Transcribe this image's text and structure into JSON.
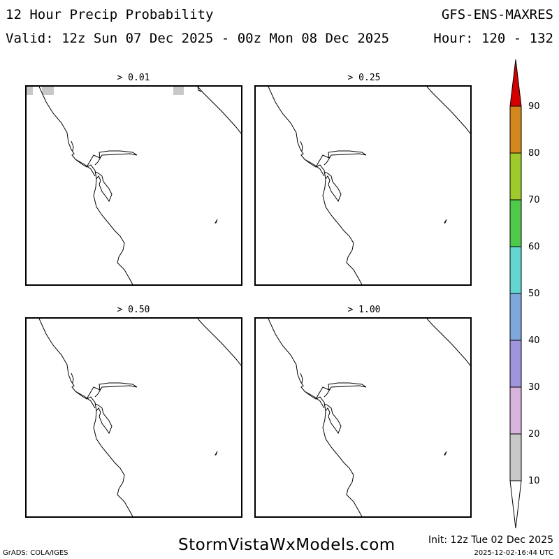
{
  "header": {
    "title": "12 Hour Precip Probability",
    "model": "GFS-ENS-MAXRES",
    "valid": "Valid: 12z Sun 07 Dec 2025 - 00z Mon 08 Dec 2025",
    "hour": "Hour: 120 - 132"
  },
  "panels": [
    {
      "label": "> 0.01"
    },
    {
      "label": "> 0.25"
    },
    {
      "label": "> 0.50"
    },
    {
      "label": "> 1.00"
    }
  ],
  "colorbar": {
    "labels": [
      "90",
      "80",
      "70",
      "60",
      "50",
      "40",
      "30",
      "20",
      "10"
    ],
    "colors": [
      "#d40000",
      "#d4871c",
      "#9ecb2b",
      "#4ec94a",
      "#62d6cf",
      "#7ea7dc",
      "#9f95dd",
      "#d8b4dc",
      "#c8c8c8"
    ]
  },
  "footer": {
    "grads": "GrADS: COLA/IGES",
    "brand": "StormVistaWxModels.com",
    "init": "Init: 12z Tue 02 Dec 2025",
    "timestamp": "2025-12-02-16:44 UTC"
  }
}
